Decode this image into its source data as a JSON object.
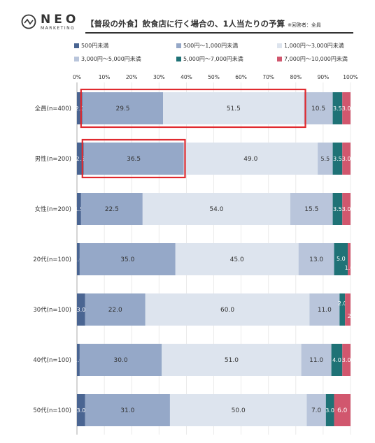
{
  "header": {
    "logo_text": "NEO",
    "logo_sub": "MARKETING",
    "title": "【普段の外食】飲食店に行く場合の、1人当たりの予算",
    "title_note": "※回答者：全員"
  },
  "colors": {
    "series": [
      "#4a6592",
      "#95a8c8",
      "#dde4ee",
      "#b9c5db",
      "#1f7276",
      "#d1576e"
    ],
    "highlight": "#e02a2f"
  },
  "chart_data": {
    "type": "bar",
    "orientation": "horizontal",
    "stacked": true,
    "categories": [
      "全員(n=400)",
      "男性(n=200)",
      "女性(n=200)",
      "20代(n=100)",
      "30代(n=100)",
      "40代(n=100)",
      "50代(n=100)"
    ],
    "x_ticks": [
      "0%",
      "10%",
      "20%",
      "30%",
      "40%",
      "50%",
      "60%",
      "70%",
      "80%",
      "90%",
      "100%"
    ],
    "xlim": [
      0,
      100
    ],
    "legend_position": "top",
    "series": [
      {
        "name": "500円未満",
        "values": [
          2.0,
          2.5,
          1.5,
          1.0,
          3.0,
          1.0,
          3.0
        ],
        "labels": [
          "2.0",
          "2.5",
          "1.5",
          "1.0",
          "3.0",
          "1.0",
          "3.0"
        ]
      },
      {
        "name": "500円～1,000円未満",
        "values": [
          29.5,
          36.5,
          22.5,
          35.0,
          22.0,
          30.0,
          31.0
        ],
        "labels": [
          "29.5",
          "36.5",
          "22.5",
          "35.0",
          "22.0",
          "30.0",
          "31.0"
        ]
      },
      {
        "name": "1,000円～3,000円未満",
        "values": [
          51.5,
          49.0,
          54.0,
          45.0,
          60.0,
          51.0,
          50.0
        ],
        "labels": [
          "51.5",
          "49.0",
          "54.0",
          "45.0",
          "60.0",
          "51.0",
          "50.0"
        ]
      },
      {
        "name": "3,000円～5,000円未満",
        "values": [
          10.5,
          5.5,
          15.5,
          13.0,
          11.0,
          11.0,
          7.0
        ],
        "labels": [
          "10.5",
          "5.5",
          "15.5",
          "13.0",
          "11.0",
          "11.0",
          "7.0"
        ]
      },
      {
        "name": "5,000円～7,000円未満",
        "values": [
          3.5,
          3.5,
          3.5,
          5.0,
          2.0,
          4.0,
          3.0
        ],
        "labels": [
          "3.5",
          "3.5",
          "3.5",
          "5.0",
          "2.0",
          "4.0",
          "3.0"
        ]
      },
      {
        "name": "7,000円～10,000円未満",
        "values": [
          3.0,
          3.0,
          3.0,
          1.0,
          2.0,
          3.0,
          6.0
        ],
        "labels": [
          "3.0",
          "3.0",
          "3.0",
          "1.0",
          "2.0",
          "3.0",
          "6.0"
        ]
      }
    ],
    "highlights": [
      {
        "category_index": 0,
        "from_series": 1,
        "to_series": 2
      },
      {
        "category_index": 1,
        "from_series": 1,
        "to_series": 1
      }
    ]
  }
}
